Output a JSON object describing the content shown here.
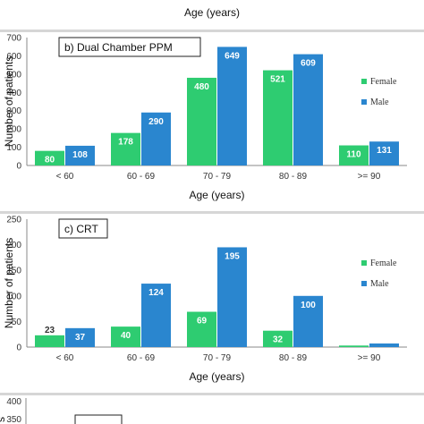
{
  "top_fragment": {
    "xlabel": "Age (years)"
  },
  "chart_data": [
    {
      "type": "bar",
      "title": "b) Dual Chamber PPM",
      "xlabel": "Age (years)",
      "ylabel": "Number of patients",
      "categories": [
        "< 60",
        "60 - 69",
        "70 - 79",
        "80 - 89",
        ">= 90"
      ],
      "ylim": [
        0,
        700
      ],
      "yticks": [
        0,
        100,
        200,
        300,
        400,
        500,
        600,
        700
      ],
      "grid": false,
      "legend": "right",
      "series": [
        {
          "name": "Female",
          "color": "#2ecc71",
          "values": [
            80,
            178,
            480,
            521,
            110
          ],
          "labels": [
            "80",
            "178",
            "480",
            "521",
            "110"
          ]
        },
        {
          "name": "Male",
          "color": "#2a86cf",
          "values": [
            108,
            290,
            649,
            609,
            131
          ],
          "labels": [
            "108",
            "290",
            "649",
            "609",
            "131"
          ]
        }
      ]
    },
    {
      "type": "bar",
      "title": "c) CRT",
      "xlabel": "Age (years)",
      "ylabel": "Number of patients",
      "categories": [
        "< 60",
        "60 - 69",
        "70 - 79",
        "80 - 89",
        ">= 90"
      ],
      "ylim": [
        0,
        250
      ],
      "yticks": [
        0,
        50,
        100,
        150,
        200,
        250
      ],
      "grid": false,
      "legend": "right",
      "series": [
        {
          "name": "Female",
          "color": "#2ecc71",
          "values": [
            23,
            40,
            69,
            32,
            3
          ],
          "labels": [
            "23",
            "40",
            "69",
            "32",
            ""
          ]
        },
        {
          "name": "Male",
          "color": "#2a86cf",
          "values": [
            37,
            124,
            195,
            100,
            7
          ],
          "labels": [
            "37",
            "124",
            "195",
            "100",
            ""
          ]
        }
      ]
    }
  ],
  "bottom_fragment": {
    "yticks": [
      "400",
      "350"
    ],
    "ylabel_fragment": "s"
  }
}
